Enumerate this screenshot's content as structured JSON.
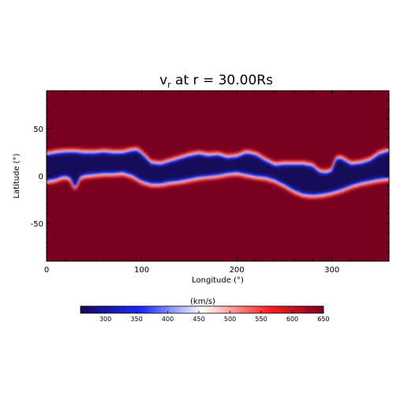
{
  "chart_data": {
    "type": "heatmap",
    "title_prefix": "v",
    "title_subscript": "r",
    "title_rest": " at r = 30.00Rs",
    "xlabel": "Longitude (°)",
    "ylabel": "Latitude (°)",
    "xlim": [
      0,
      360
    ],
    "ylim": [
      -90,
      90
    ],
    "x_ticks": [
      0,
      100,
      200,
      300
    ],
    "y_ticks": [
      -50,
      0,
      50
    ],
    "grid": false,
    "background_value_kms": 650,
    "slow_wind_value_kms": 275,
    "band_upper_edge": {
      "lon": [
        0,
        10,
        20,
        30,
        40,
        50,
        60,
        70,
        80,
        88,
        95,
        100,
        105,
        110,
        120,
        130,
        140,
        150,
        160,
        170,
        180,
        190,
        200,
        210,
        220,
        230,
        240,
        250,
        260,
        270,
        280,
        285,
        290,
        295,
        300,
        305,
        310,
        320,
        330,
        340,
        350,
        360
      ],
      "lat": [
        22,
        24,
        25,
        25,
        24,
        24,
        25,
        24,
        24,
        26,
        27,
        23,
        18,
        13,
        12,
        15,
        18,
        21,
        23,
        21,
        22,
        19,
        20,
        24,
        22,
        16,
        11,
        12,
        12,
        12,
        10,
        5,
        3,
        3,
        5,
        18,
        18,
        12,
        13,
        16,
        23,
        26
      ]
    },
    "band_lower_edge": {
      "lon": [
        0,
        10,
        15,
        20,
        25,
        28,
        30,
        35,
        40,
        50,
        60,
        70,
        80,
        90,
        100,
        110,
        120,
        130,
        140,
        150,
        160,
        170,
        180,
        190,
        200,
        210,
        220,
        230,
        240,
        250,
        260,
        270,
        280,
        290,
        300,
        310,
        320,
        330,
        340,
        350,
        360
      ],
      "lat": [
        -5,
        -3,
        -1,
        0,
        -2,
        -8,
        -12,
        -1,
        1,
        2,
        3,
        3,
        4,
        1,
        -5,
        -8,
        -8,
        -6,
        -5,
        -3,
        -1,
        0,
        1,
        3,
        4,
        2,
        0,
        -1,
        -4,
        -9,
        -15,
        -19,
        -20,
        -19,
        -17,
        -14,
        -10,
        -7,
        -5,
        -3,
        -2
      ]
    },
    "colorbar": {
      "title": "(km/s)",
      "min": 260,
      "max": 650,
      "ticks": [
        "300",
        "350",
        "400",
        "450",
        "500",
        "550",
        "600",
        "650"
      ]
    },
    "colors": {
      "slow": "#140a5a",
      "blue": "#1e28ff",
      "white": "#ffffff",
      "red": "#ff2020",
      "fast": "#7a0020"
    }
  }
}
